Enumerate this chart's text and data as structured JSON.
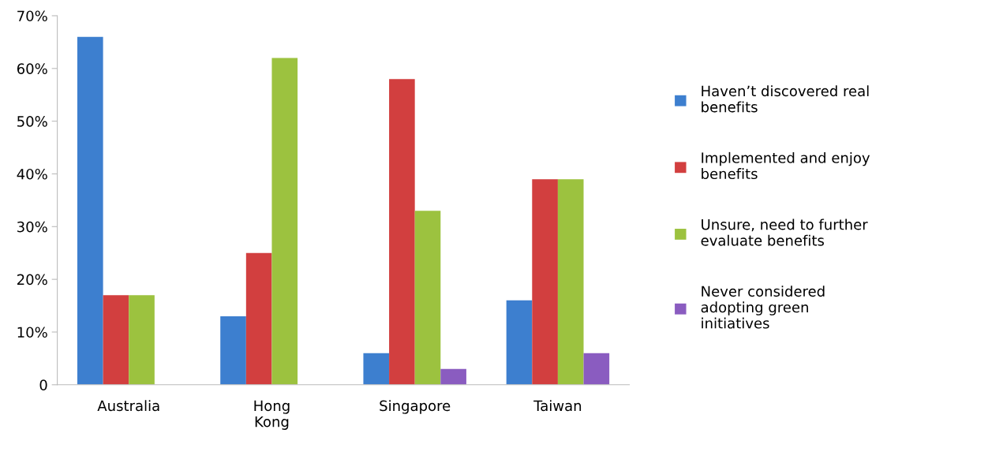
{
  "chart_data": {
    "type": "bar",
    "categories": [
      "Australia",
      "Hong\nKong",
      "Singapore",
      "Taiwan"
    ],
    "series": [
      {
        "name": "Haven’t discovered real benefits",
        "color": "#3d7fcf",
        "values": [
          66,
          13,
          6,
          16
        ]
      },
      {
        "name": "Implemented and enjoy benefits",
        "color": "#d23f3f",
        "values": [
          17,
          25,
          58,
          39
        ]
      },
      {
        "name": "Unsure, need to further evaluate benefits",
        "color": "#9cc23f",
        "values": [
          17,
          62,
          33,
          39
        ]
      },
      {
        "name": "Never considered adopting green initiatives",
        "color": "#8a5cc0",
        "values": [
          null,
          null,
          3,
          6
        ]
      }
    ],
    "ylim": [
      0,
      70
    ],
    "yticks": [
      {
        "value": 0,
        "label": "0"
      },
      {
        "value": 10,
        "label": "10%"
      },
      {
        "value": 20,
        "label": "20%"
      },
      {
        "value": 30,
        "label": "30%"
      },
      {
        "value": 40,
        "label": "40%"
      },
      {
        "value": 50,
        "label": "50%"
      },
      {
        "value": 60,
        "label": "60%"
      },
      {
        "value": 70,
        "label": "70%"
      }
    ],
    "grid": false,
    "legend": "right"
  }
}
